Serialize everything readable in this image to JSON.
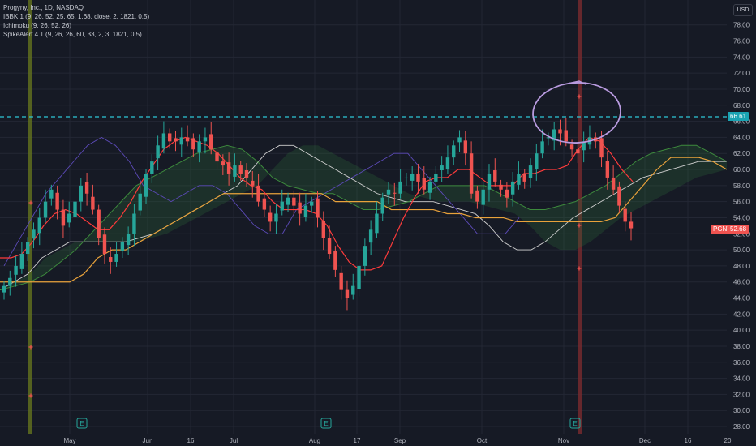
{
  "legend": {
    "title": "Progyny, Inc., 1D, NASDAQ",
    "ind1": "IBBK 1 (9, 26, 52, 25, 65, 1.68, close, 2, 1821, 0.5)",
    "ind2": "Ichimoku (9, 26, 52, 26)",
    "ind3": "SpikeAlert 4.1 (9, 26, 26, 60, 33, 2, 3, 1821, 0.5)"
  },
  "currency_button": "USD",
  "ticker_label": "PGNY",
  "last_price_label": "52.68",
  "hline_label": "66.61",
  "earnings_marker": "E",
  "colors": {
    "background": "#161a25",
    "grid": "#232734",
    "up": "#26a69a",
    "down": "#ef5350",
    "tenkan": "#ff3b3b",
    "kijun": "#e9a23b",
    "chikou": "#5c4ab8",
    "span_a": "#3d8a3d",
    "span_b": "#cfcfcf",
    "hline": "#2ec7d6",
    "annotation": "#b99be0"
  },
  "chart_data": {
    "type": "candlestick",
    "title": "Progyny, Inc., 1D, NASDAQ",
    "ylim": [
      27,
      80
    ],
    "y_ticks": [
      "28.00",
      "30.00",
      "32.00",
      "34.00",
      "36.00",
      "38.00",
      "40.00",
      "42.00",
      "44.00",
      "46.00",
      "48.00",
      "50.00",
      "52.00",
      "54.00",
      "56.00",
      "58.00",
      "60.00",
      "62.00",
      "64.00",
      "66.00",
      "68.00",
      "70.00",
      "72.00",
      "74.00",
      "76.00",
      "78.00"
    ],
    "x_ticks": [
      "May",
      "Jun",
      "16",
      "Jul",
      "Aug",
      "17",
      "Sep",
      "Oct",
      "Nov",
      "Dec",
      "16",
      "20"
    ],
    "horizontal_line": 66.61,
    "last_price": 52.68,
    "close_series": [
      45.5,
      46.5,
      48,
      49.5,
      51,
      52.5,
      54,
      56,
      57.5,
      55,
      53,
      54.5,
      56,
      58,
      57,
      55,
      51.5,
      49.5,
      48.5,
      49.5,
      51,
      52,
      54.5,
      57,
      59.5,
      61,
      63,
      64.5,
      63.5,
      63.5,
      64,
      63.5,
      62.5,
      63.5,
      64,
      62.5,
      61,
      60.5,
      59.5,
      60.5,
      59.5,
      59,
      58,
      56,
      55,
      53.5,
      54.5,
      56,
      56.5,
      55.5,
      54.5,
      55.5,
      56,
      54,
      51.5,
      49.5,
      47.5,
      45,
      44,
      45.5,
      48,
      50.5,
      52.5,
      54.5,
      56.5,
      57.5,
      57,
      58.5,
      59,
      59.5,
      58.5,
      57.5,
      58.5,
      59.5,
      60.5,
      61.5,
      63,
      64,
      62,
      57,
      56,
      57.5,
      59.5,
      58.5,
      57.5,
      56.5,
      58.5,
      59.5,
      58.5,
      60.5,
      62,
      63.5,
      64,
      65,
      64.5,
      63.5,
      62.5,
      62,
      63.5,
      64,
      63.5,
      61.5,
      59,
      57.5,
      55.5,
      53.5,
      52.68
    ],
    "tenkan_sen": [
      49,
      49,
      49.5,
      51,
      53,
      54.5,
      55,
      54.5,
      53.5,
      52.5,
      52.5,
      54,
      56,
      58.5,
      60.5,
      62.5,
      63.5,
      64,
      63.5,
      63,
      62,
      60.5,
      59,
      58,
      57.5,
      56,
      55,
      55,
      55,
      54.5,
      53,
      50.5,
      48.5,
      47.5,
      47.5,
      48,
      51,
      54,
      56.5,
      58.5,
      59,
      59,
      60,
      60,
      59,
      58,
      58,
      58,
      59.5,
      59.5,
      60,
      60,
      60.5,
      62.5,
      64,
      63.5,
      62,
      60,
      58.5
    ],
    "kijun_sen": [
      46,
      46,
      46,
      46,
      46,
      46,
      47,
      49,
      50,
      50,
      51,
      52,
      53,
      54,
      55,
      56,
      57,
      57,
      57,
      57,
      57,
      57,
      57,
      57,
      56,
      56,
      56,
      56,
      55,
      55,
      55,
      55,
      54.5,
      54.5,
      54,
      54,
      54,
      53.5,
      53.5,
      53.5,
      53.5,
      53.5,
      53.5,
      53.5,
      54,
      56,
      58,
      60,
      61.5,
      61.5,
      61.5,
      61,
      60
    ],
    "chikou_span": [
      48,
      51,
      54,
      57,
      59,
      61,
      63,
      64,
      63,
      61,
      58,
      57,
      56,
      57,
      58,
      58,
      57,
      55,
      53,
      52,
      52,
      55,
      56,
      57,
      58,
      59,
      60,
      61,
      62,
      62,
      60,
      58,
      56,
      54,
      52,
      52,
      52,
      54
    ],
    "senkou_span_a": [
      45,
      45.5,
      46,
      47,
      48.5,
      50,
      52,
      54,
      56,
      58,
      59,
      60,
      61,
      62,
      62.5,
      63,
      62.5,
      61,
      59,
      58,
      57.5,
      57,
      57,
      56,
      55,
      55,
      55.5,
      56,
      57,
      58,
      58,
      58,
      58,
      57,
      56,
      55,
      55,
      55.5,
      56,
      57,
      58,
      59.5,
      61,
      62,
      62.5,
      63,
      63,
      62,
      61
    ],
    "senkou_span_b": [
      45,
      46,
      47,
      49,
      50,
      51,
      51,
      51,
      51,
      51,
      51.5,
      52,
      53,
      54,
      55,
      56,
      57,
      58,
      60,
      62,
      63,
      63,
      62,
      61,
      60,
      59,
      58,
      57,
      56.5,
      56,
      56,
      56,
      55.5,
      55,
      54.5,
      53,
      51,
      50,
      50,
      51,
      52.5,
      54,
      55,
      56,
      57,
      58,
      59,
      59.5,
      60,
      60.5,
      61,
      61,
      61
    ]
  }
}
